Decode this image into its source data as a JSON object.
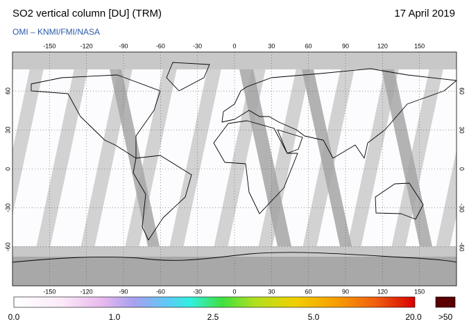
{
  "header": {
    "title": "SO2 vertical column [DU] (TRM)",
    "date": "17 April 2019",
    "source": "OMI  –  KNMI/FMI/NASA"
  },
  "map": {
    "lonlim": [
      -180,
      180
    ],
    "latlim": [
      -90,
      90
    ],
    "lon_ticks": [
      -150,
      -120,
      -90,
      -60,
      -30,
      0,
      30,
      60,
      90,
      120,
      150
    ],
    "lat_ticks": [
      60,
      30,
      0,
      -30,
      -60
    ]
  },
  "colorbar": {
    "labels": [
      "0.0",
      "1.0",
      "2.5",
      "5.0",
      "20.0",
      ">50"
    ]
  }
}
